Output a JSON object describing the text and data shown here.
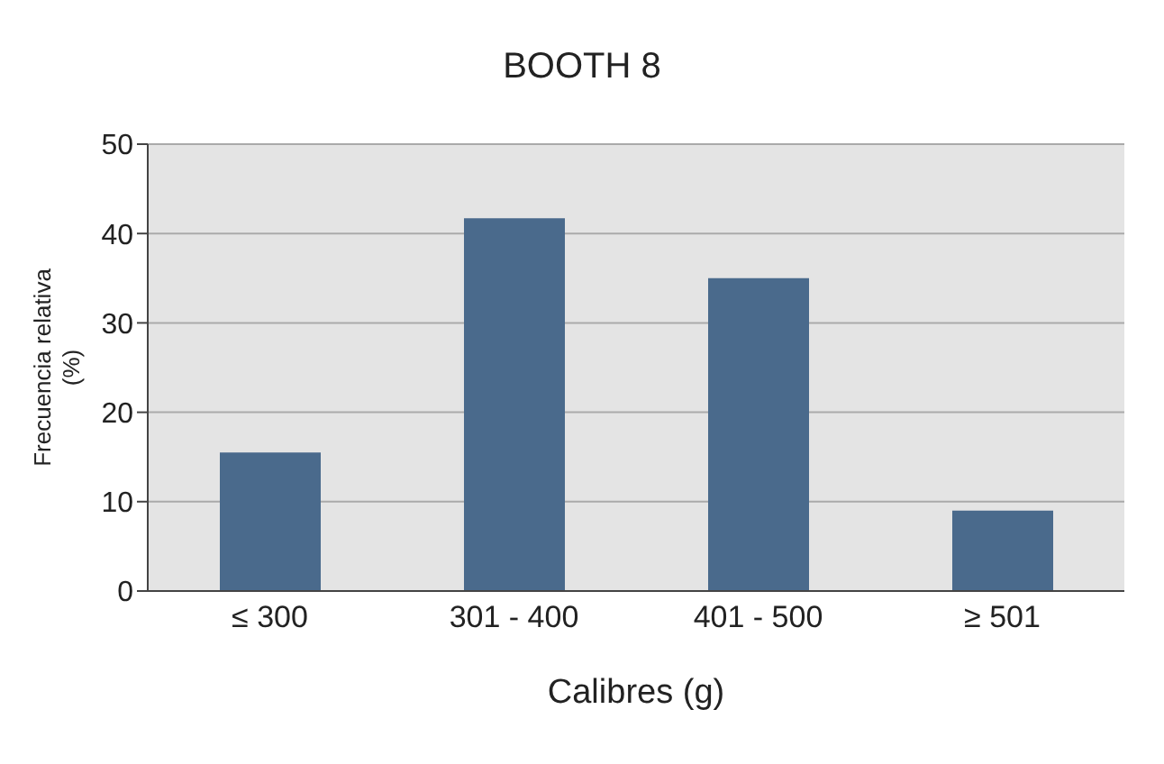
{
  "chart_data": {
    "type": "bar",
    "title": "BOOTH 8",
    "xlabel": "Calibres (g)",
    "ylabel": "Frecuencia relativa (%)",
    "categories": [
      "≤ 300",
      "301 - 400",
      "401 - 500",
      "≥ 501"
    ],
    "values": [
      15.5,
      41.7,
      35,
      9
    ],
    "color": "#4a6a8c",
    "ylim": [
      0,
      50
    ],
    "yticks": [
      0,
      10,
      20,
      30,
      40,
      50
    ],
    "grid": "y"
  }
}
